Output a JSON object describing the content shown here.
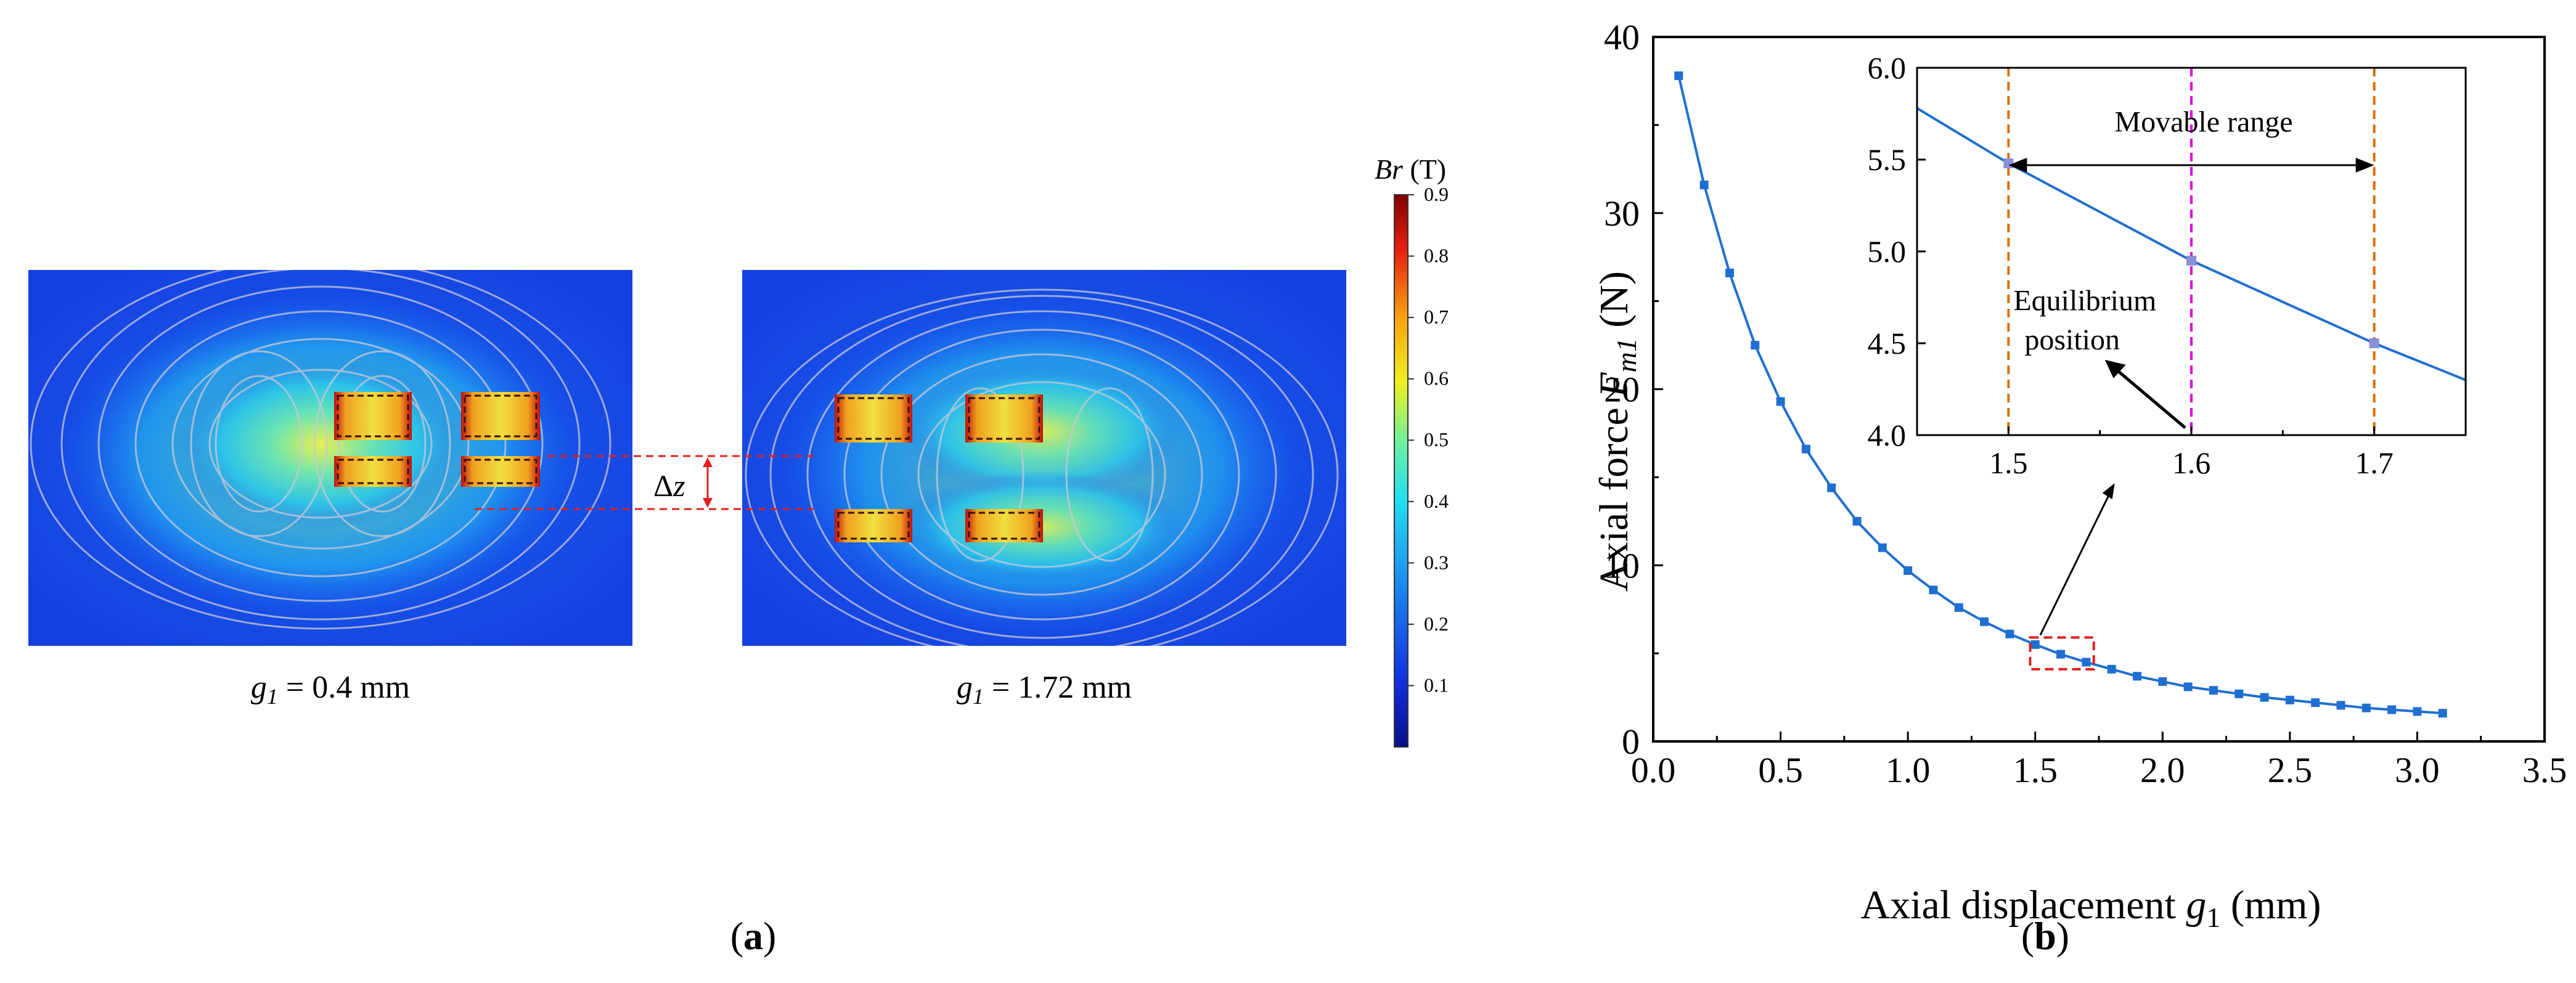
{
  "panel_a": {
    "sim_left_caption_var": "g",
    "sim_left_caption_sub": "1",
    "sim_left_caption_rest": " = 0.4 mm",
    "sim_right_caption_var": "g",
    "sim_right_caption_sub": "1",
    "sim_right_caption_rest": " = 1.72 mm",
    "delta_label_sym": "Δ",
    "delta_label_var": "z",
    "colorbar_title_var": "Br",
    "colorbar_title_unit": " (T)",
    "colorbar_ticks": [
      "0.9",
      "0.8",
      "0.7",
      "0.6",
      "0.5",
      "0.4",
      "0.3",
      "0.2",
      "0.1"
    ],
    "colorbar_tick_values": [
      0.9,
      0.8,
      0.7,
      0.6,
      0.5,
      0.4,
      0.3,
      0.2,
      0.1
    ],
    "colorbar_range": [
      0.0,
      0.9
    ],
    "label": "(a)",
    "label_open": "(",
    "label_letter": "a",
    "label_close": ")"
  },
  "panel_b": {
    "label": "(b)",
    "label_open": "(",
    "label_letter": "b",
    "label_close": ")"
  },
  "chart_data": [
    {
      "type": "line",
      "title": "",
      "xlabel": "Axial displacement g1 (mm)",
      "xlabel_main": "Axial displacement ",
      "xlabel_var": "g",
      "xlabel_sub": "1",
      "xlabel_unit": " (mm)",
      "ylabel": "Axial force Fm1 (N)",
      "ylabel_main": "Axial force ",
      "ylabel_var": "F",
      "ylabel_sub": "m1",
      "ylabel_unit": " (N)",
      "xlim": [
        0.0,
        3.5
      ],
      "ylim": [
        0,
        40
      ],
      "xticks": [
        0.0,
        0.5,
        1.0,
        1.5,
        2.0,
        2.5,
        3.0,
        3.5
      ],
      "xtick_labels": [
        "0.0",
        "0.5",
        "1.0",
        "1.5",
        "2.0",
        "2.5",
        "3.0",
        "3.5"
      ],
      "yticks": [
        0,
        10,
        20,
        30,
        40
      ],
      "ytick_labels": [
        "0",
        "10",
        "20",
        "30",
        "40"
      ],
      "grid": false,
      "marker": "square",
      "color": "#1f6fd1",
      "x": [
        0.1,
        0.2,
        0.3,
        0.4,
        0.5,
        0.6,
        0.7,
        0.8,
        0.9,
        1.0,
        1.1,
        1.2,
        1.3,
        1.4,
        1.5,
        1.6,
        1.7,
        1.8,
        1.9,
        2.0,
        2.1,
        2.2,
        2.3,
        2.4,
        2.5,
        2.6,
        2.7,
        2.8,
        2.9,
        3.0,
        3.1
      ],
      "y": [
        37.8,
        31.6,
        26.6,
        22.5,
        19.3,
        16.6,
        14.4,
        12.5,
        11.0,
        9.7,
        8.6,
        7.6,
        6.8,
        6.1,
        5.5,
        4.95,
        4.5,
        4.1,
        3.7,
        3.4,
        3.1,
        2.9,
        2.7,
        2.5,
        2.35,
        2.2,
        2.05,
        1.9,
        1.8,
        1.7,
        1.6
      ],
      "highlight_box": {
        "x": [
          1.48,
          1.73
        ],
        "y": [
          4.1,
          5.9
        ]
      }
    },
    {
      "type": "line",
      "title": "",
      "xlim": [
        1.45,
        1.75
      ],
      "ylim": [
        4.0,
        6.0
      ],
      "xticks": [
        1.5,
        1.6,
        1.7
      ],
      "xtick_labels": [
        "1.5",
        "1.6",
        "1.7"
      ],
      "yticks": [
        4.0,
        4.5,
        5.0,
        5.5,
        6.0
      ],
      "ytick_labels": [
        "4.0",
        "4.5",
        "5.0",
        "5.5",
        "6.0"
      ],
      "grid": false,
      "color": "#1f6fd1",
      "x": [
        1.45,
        1.5,
        1.6,
        1.7,
        1.75
      ],
      "y": [
        5.78,
        5.48,
        4.95,
        4.5,
        4.3
      ],
      "markers_x": [
        1.5,
        1.6,
        1.7
      ],
      "markers_y": [
        5.48,
        4.95,
        4.5
      ],
      "vlines": [
        {
          "x": 1.5,
          "color": "#e06c00"
        },
        {
          "x": 1.6,
          "color": "#e000e0"
        },
        {
          "x": 1.7,
          "color": "#e06c00"
        }
      ],
      "annotations": [
        {
          "text": "Movable range"
        },
        {
          "text_line1": "Equilibrium",
          "text_line2": "position"
        }
      ]
    }
  ]
}
